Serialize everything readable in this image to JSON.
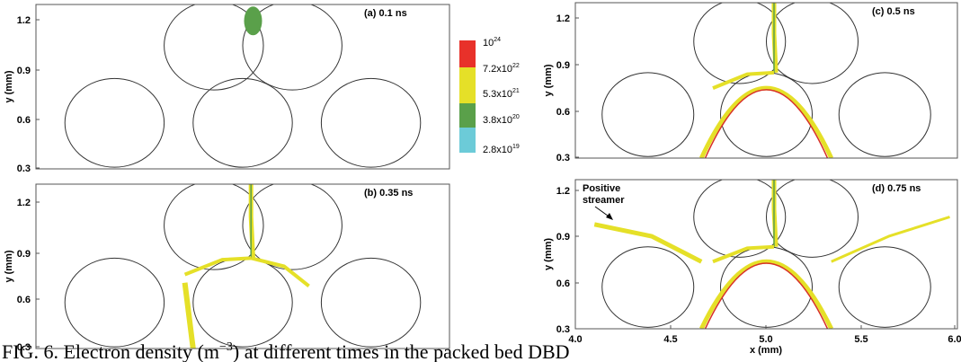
{
  "panels": [
    {
      "label": "(a) 0.1 ns",
      "y_label": "y (mm)",
      "yticks": [
        "1.2",
        "0.9",
        "0.6",
        "0.3"
      ]
    },
    {
      "label": "(b) 0.35 ns",
      "y_label": "y (mm)",
      "yticks": [
        "1.2",
        "0.9",
        "0.6",
        "0.3"
      ]
    },
    {
      "label": "(c) 0.5 ns",
      "y_label": "y (mm)",
      "yticks": [
        "1.2",
        "0.9",
        "0.6",
        "0.3"
      ]
    },
    {
      "label": "(d) 0.75 ns",
      "y_label": "y (mm)",
      "yticks": [
        "1.2",
        "0.9",
        "0.6",
        "0.3"
      ],
      "x_label": "x (mm)",
      "xticks": [
        "4.0",
        "4.5",
        "5.0",
        "5.5",
        "6.0"
      ],
      "annotation": [
        "Positive",
        "streamer"
      ]
    }
  ],
  "colorbar": [
    {
      "base": "10",
      "exp": "24"
    },
    {
      "base": "7.2x10",
      "exp": "22"
    },
    {
      "base": "5.3x10",
      "exp": "21"
    },
    {
      "base": "3.8x10",
      "exp": "20"
    },
    {
      "base": "2.8x10",
      "exp": "19"
    }
  ],
  "caption": {
    "before": "FIG. 6. Electron density (m",
    "exp": "−3",
    "after": ") at different times in the packed bed DBD"
  }
}
